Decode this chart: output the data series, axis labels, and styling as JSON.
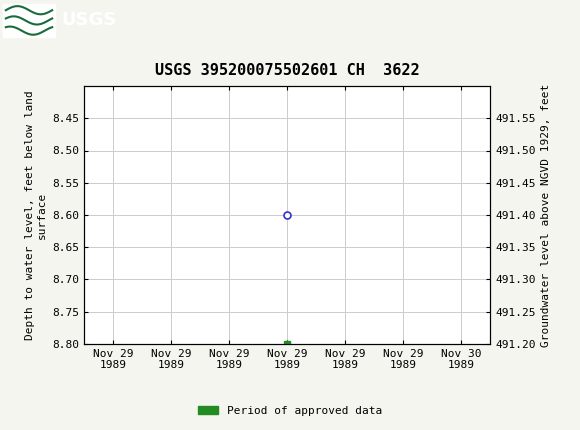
{
  "title": "USGS 395200075502601 CH  3622",
  "header_bg_color": "#1a6b3c",
  "fig_bg_color": "#f5f5f0",
  "plot_bg_color": "#ffffff",
  "grid_color": "#cccccc",
  "ylabel_left": "Depth to water level, feet below land\nsurface",
  "ylabel_right": "Groundwater level above NGVD 1929, feet",
  "ylim_left": [
    8.8,
    8.4
  ],
  "ylim_right": [
    491.2,
    491.6
  ],
  "yticks_left": [
    8.45,
    8.5,
    8.55,
    8.6,
    8.65,
    8.7,
    8.75,
    8.8
  ],
  "yticks_right": [
    491.55,
    491.5,
    491.45,
    491.4,
    491.35,
    491.3,
    491.25,
    491.2
  ],
  "xtick_labels": [
    "Nov 29\n1989",
    "Nov 29\n1989",
    "Nov 29\n1989",
    "Nov 29\n1989",
    "Nov 29\n1989",
    "Nov 29\n1989",
    "Nov 30\n1989"
  ],
  "xtick_positions": [
    0,
    1,
    2,
    3,
    4,
    5,
    6
  ],
  "xlim": [
    -0.5,
    6.5
  ],
  "data_point_x": 3,
  "data_point_y": 8.6,
  "data_point_color": "#3333cc",
  "green_square_x": 3,
  "green_square_y": 8.8,
  "green_square_color": "#228B22",
  "legend_label": "Period of approved data",
  "legend_color": "#228B22",
  "title_fontsize": 11,
  "tick_fontsize": 8,
  "label_fontsize": 8
}
